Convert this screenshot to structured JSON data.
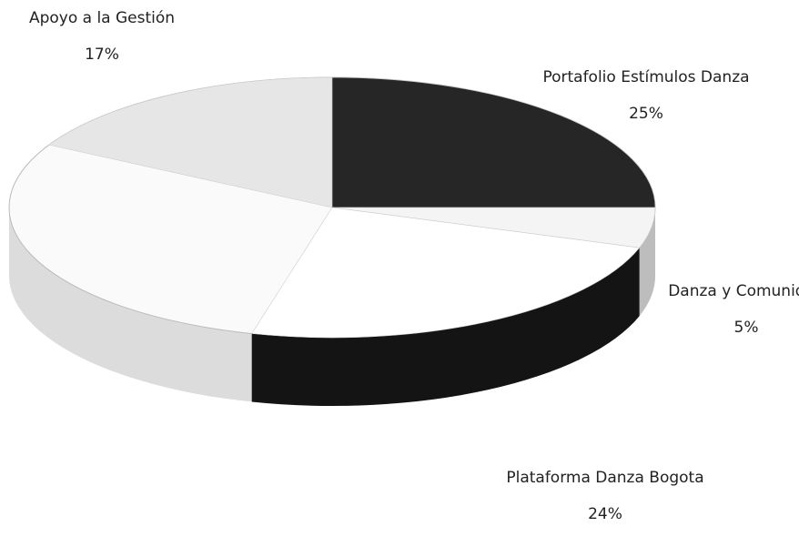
{
  "chart_data": {
    "type": "pie",
    "categories": [
      "Apoyo a la Gestión",
      "Portafolio Estímulos Danza",
      "Danza y Comunidad",
      "Plataforma Danza Bogota"
    ],
    "values": [
      17,
      25,
      5,
      24
    ],
    "value_labels": [
      "17%",
      "25%",
      "5%",
      "24%"
    ],
    "colors": [
      "#e6e6e6",
      "#262626",
      "#f4f4f4",
      "#ffffff"
    ]
  }
}
